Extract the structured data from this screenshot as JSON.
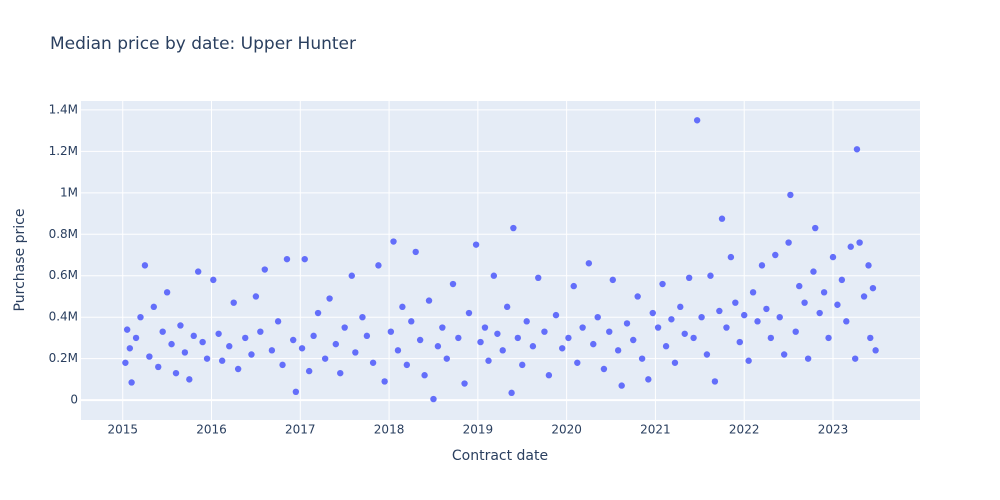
{
  "chart_data": {
    "type": "scatter",
    "title": "Median price by date: Upper Hunter",
    "x_label": "Contract date",
    "y_label": "Purchase price",
    "color": "#636efa",
    "grid": true,
    "xlim": [
      2014.53,
      2023.98
    ],
    "ylim": [
      -96000,
      1443000
    ],
    "xticks": [
      2015,
      2016,
      2017,
      2018,
      2019,
      2020,
      2021,
      2022,
      2023
    ],
    "yticks": [
      0,
      {
        "value": 200000,
        "label": "0.2M"
      },
      {
        "value": 400000,
        "label": "0.4M"
      },
      {
        "value": 600000,
        "label": "0.6M"
      },
      {
        "value": 800000,
        "label": "0.8M"
      },
      {
        "value": 1000000,
        "label": "1M"
      },
      {
        "value": 1200000,
        "label": "1.2M"
      },
      {
        "value": 1400000,
        "label": "1.4M"
      }
    ],
    "x": [
      2015.03,
      2015.05,
      2015.08,
      2015.1,
      2015.15,
      2015.2,
      2015.25,
      2015.3,
      2015.35,
      2015.4,
      2015.45,
      2015.5,
      2015.55,
      2015.6,
      2015.65,
      2015.7,
      2015.75,
      2015.8,
      2015.85,
      2015.9,
      2015.95,
      2016.02,
      2016.08,
      2016.12,
      2016.2,
      2016.25,
      2016.3,
      2016.38,
      2016.45,
      2016.5,
      2016.55,
      2016.6,
      2016.68,
      2016.75,
      2016.8,
      2016.85,
      2016.92,
      2016.95,
      2017.02,
      2017.05,
      2017.1,
      2017.15,
      2017.2,
      2017.28,
      2017.33,
      2017.4,
      2017.45,
      2017.5,
      2017.58,
      2017.62,
      2017.7,
      2017.75,
      2017.82,
      2017.88,
      2017.95,
      2018.02,
      2018.05,
      2018.1,
      2018.15,
      2018.2,
      2018.25,
      2018.3,
      2018.35,
      2018.4,
      2018.45,
      2018.5,
      2018.55,
      2018.6,
      2018.65,
      2018.72,
      2018.78,
      2018.85,
      2018.9,
      2018.98,
      2019.03,
      2019.08,
      2019.12,
      2019.18,
      2019.22,
      2019.28,
      2019.33,
      2019.38,
      2019.4,
      2019.45,
      2019.5,
      2019.55,
      2019.62,
      2019.68,
      2019.75,
      2019.8,
      2019.88,
      2019.95,
      2020.02,
      2020.08,
      2020.12,
      2020.18,
      2020.25,
      2020.3,
      2020.35,
      2020.42,
      2020.48,
      2020.52,
      2020.58,
      2020.62,
      2020.68,
      2020.75,
      2020.8,
      2020.85,
      2020.92,
      2020.97,
      2021.03,
      2021.08,
      2021.12,
      2021.18,
      2021.22,
      2021.28,
      2021.33,
      2021.38,
      2021.43,
      2021.47,
      2021.52,
      2021.58,
      2021.62,
      2021.67,
      2021.72,
      2021.75,
      2021.8,
      2021.85,
      2021.9,
      2021.95,
      2022.0,
      2022.05,
      2022.1,
      2022.15,
      2022.2,
      2022.25,
      2022.3,
      2022.35,
      2022.4,
      2022.45,
      2022.5,
      2022.52,
      2022.58,
      2022.62,
      2022.68,
      2022.72,
      2022.78,
      2022.8,
      2022.85,
      2022.9,
      2022.95,
      2023.0,
      2023.05,
      2023.1,
      2023.15,
      2023.2,
      2023.25,
      2023.27,
      2023.3,
      2023.35,
      2023.4,
      2023.42,
      2023.45,
      2023.48
    ],
    "values": [
      180000,
      340000,
      250000,
      85000,
      300000,
      400000,
      650000,
      210000,
      450000,
      160000,
      330000,
      520000,
      270000,
      130000,
      360000,
      230000,
      100000,
      310000,
      620000,
      280000,
      200000,
      580000,
      320000,
      190000,
      260000,
      470000,
      150000,
      300000,
      220000,
      500000,
      330000,
      630000,
      240000,
      380000,
      170000,
      680000,
      290000,
      40000,
      250000,
      680000,
      140000,
      310000,
      420000,
      200000,
      490000,
      270000,
      130000,
      350000,
      600000,
      230000,
      400000,
      310000,
      180000,
      650000,
      90000,
      330000,
      765000,
      240000,
      450000,
      170000,
      380000,
      715000,
      290000,
      120000,
      480000,
      5000,
      260000,
      350000,
      200000,
      560000,
      300000,
      80000,
      420000,
      750000,
      280000,
      350000,
      190000,
      600000,
      320000,
      240000,
      450000,
      35000,
      830000,
      300000,
      170000,
      380000,
      260000,
      590000,
      330000,
      120000,
      410000,
      250000,
      300000,
      550000,
      180000,
      350000,
      660000,
      270000,
      400000,
      150000,
      330000,
      580000,
      240000,
      70000,
      370000,
      290000,
      500000,
      200000,
      100000,
      420000,
      350000,
      560000,
      260000,
      390000,
      180000,
      450000,
      320000,
      590000,
      300000,
      1350000,
      400000,
      220000,
      600000,
      90000,
      430000,
      875000,
      350000,
      690000,
      470000,
      280000,
      410000,
      190000,
      520000,
      380000,
      650000,
      440000,
      300000,
      700000,
      400000,
      220000,
      760000,
      990000,
      330000,
      550000,
      470000,
      200000,
      620000,
      830000,
      420000,
      520000,
      300000,
      690000,
      460000,
      580000,
      380000,
      740000,
      200000,
      1210000,
      760000,
      500000,
      650000,
      300000,
      540000,
      240000
    ]
  }
}
